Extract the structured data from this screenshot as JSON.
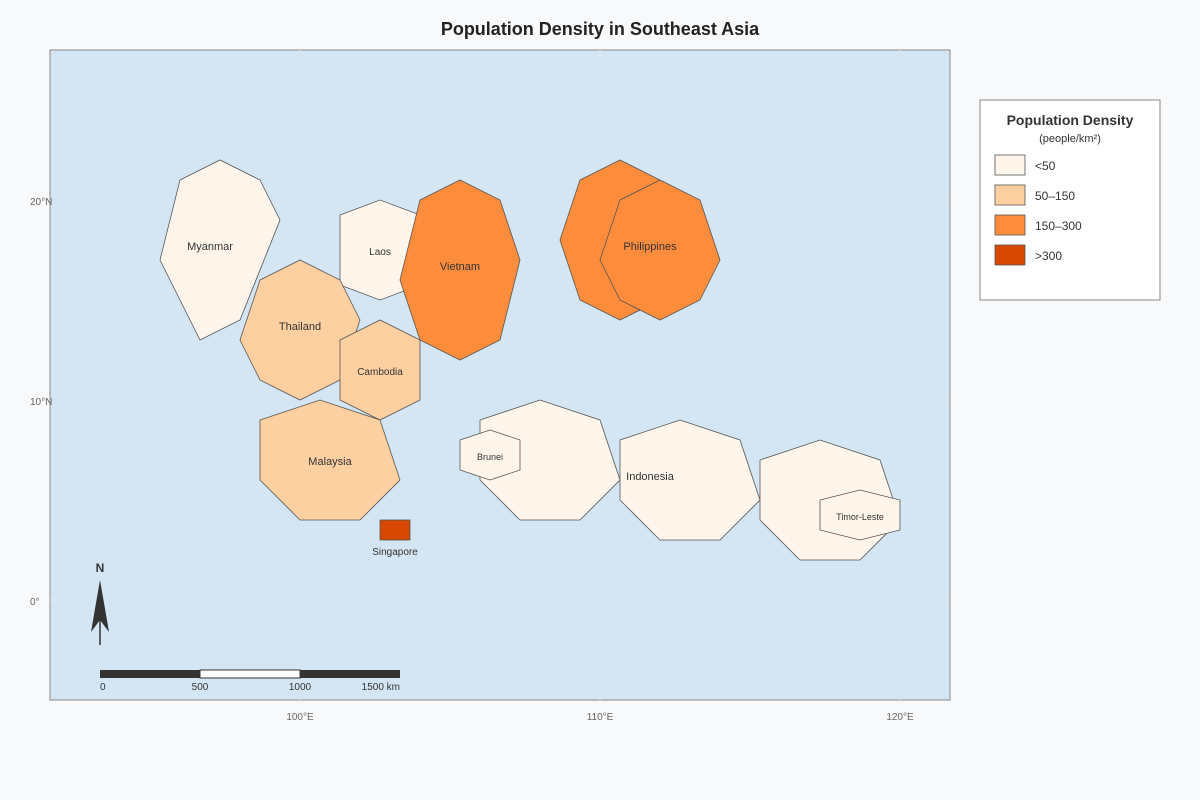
{
  "title": "Population Density in Southeast Asia",
  "colors": {
    "background": "#f8f9fa",
    "water": "#d4e6f3",
    "class_lt50": "#fff5eb",
    "class_50_150": "#fdd0a2",
    "class_150_300": "#fd8d3c",
    "class_gt300": "#d94801"
  },
  "axes": {
    "lat_labels": [
      "20°N",
      "10°N",
      "0°"
    ],
    "lon_labels": [
      "100°E",
      "110°E",
      "120°E"
    ]
  },
  "countries": [
    {
      "name": "Myanmar",
      "density_class": "<50"
    },
    {
      "name": "Laos",
      "density_class": "<50"
    },
    {
      "name": "Vietnam",
      "density_class": "150–300"
    },
    {
      "name": "Philippines",
      "density_class": "150–300"
    },
    {
      "name": "Thailand",
      "density_class": "50–150"
    },
    {
      "name": "Cambodia",
      "density_class": "50–150"
    },
    {
      "name": "Malaysia",
      "density_class": "50–150"
    },
    {
      "name": "Singapore",
      "density_class": ">300"
    },
    {
      "name": "Brunei",
      "density_class": "<50"
    },
    {
      "name": "Indonesia",
      "density_class": "<50"
    },
    {
      "name": "Timor-Leste",
      "density_class": "<50"
    }
  ],
  "legend": {
    "title": "Population Density",
    "subtitle": "(people/km²)",
    "items": [
      {
        "label": "<50",
        "color": "#fff5eb"
      },
      {
        "label": "50–150",
        "color": "#fdd0a2"
      },
      {
        "label": "150–300",
        "color": "#fd8d3c"
      },
      {
        "label": ">300",
        "color": "#d94801"
      }
    ]
  },
  "north_arrow": {
    "label": "N"
  },
  "scale_bar": {
    "labels": [
      "0",
      "500",
      "1000",
      "1500 km"
    ]
  }
}
